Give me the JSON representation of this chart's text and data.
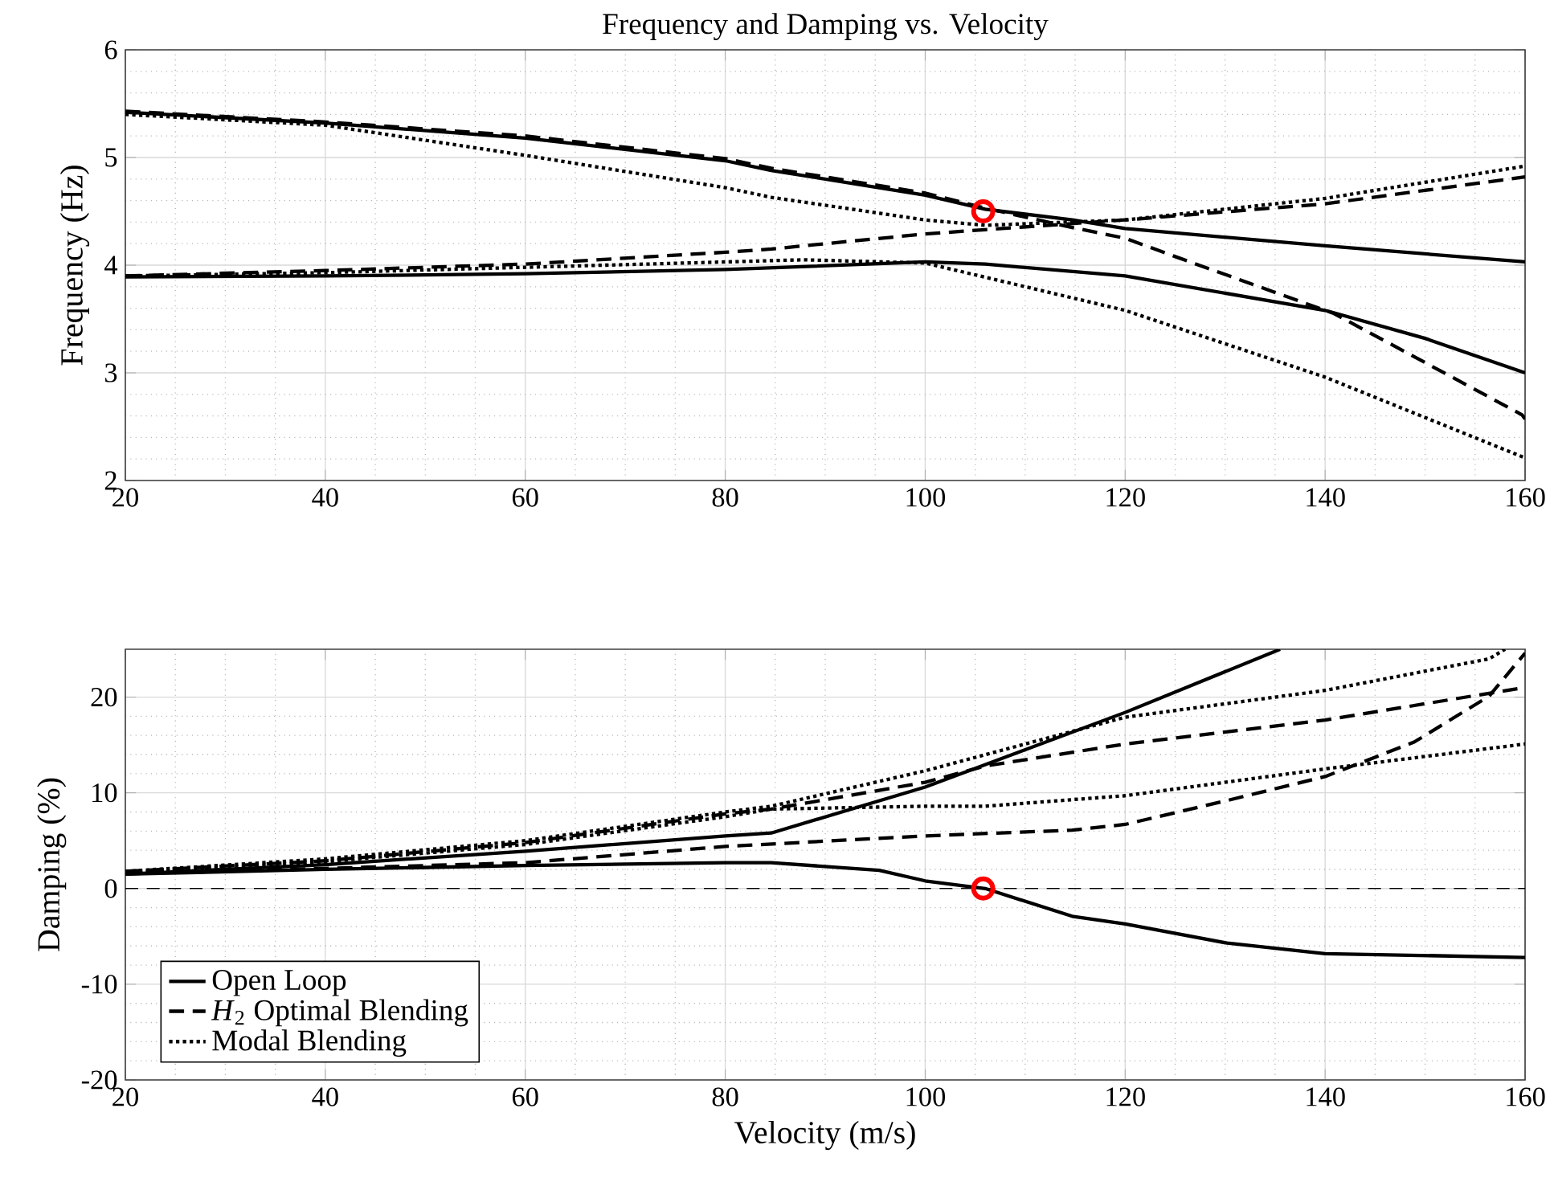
{
  "chart_data": [
    {
      "type": "line",
      "title": "Frequency and Damping vs. Velocity",
      "ylabel": "Frequency (Hz)",
      "xlim": [
        20,
        160
      ],
      "ylim": [
        2,
        6
      ],
      "xticks": [
        20,
        40,
        60,
        80,
        100,
        120,
        140,
        160
      ],
      "yticks": [
        2,
        3,
        4,
        5,
        6
      ],
      "grid": true,
      "series": [
        {
          "color": "#000000",
          "line_style": "solid",
          "x": [
            20,
            40,
            60,
            80,
            84.6,
            100,
            106,
            114.7,
            120,
            140,
            160
          ],
          "values": [
            5.42,
            5.32,
            5.18,
            4.97,
            4.88,
            4.65,
            4.52,
            4.42,
            4.34,
            4.18,
            4.03
          ]
        },
        {
          "color": "#000000",
          "line_style": "solid",
          "x": [
            20,
            40,
            60,
            80,
            100,
            106,
            120,
            140,
            150,
            160
          ],
          "values": [
            3.89,
            3.9,
            3.92,
            3.96,
            4.03,
            4.01,
            3.9,
            3.58,
            3.32,
            3.0
          ]
        },
        {
          "color": "#000000",
          "line_style": "dashed",
          "x": [
            20,
            40,
            60,
            80,
            84.6,
            100,
            106,
            114.7,
            120,
            125.3,
            140.9,
            159.7,
            160
          ],
          "values": [
            5.43,
            5.33,
            5.2,
            4.99,
            4.9,
            4.67,
            4.53,
            4.35,
            4.25,
            4.07,
            3.55,
            2.61,
            2.57
          ]
        },
        {
          "color": "#000000",
          "line_style": "dashed",
          "x": [
            20,
            40,
            60,
            80,
            84.6,
            100,
            106,
            120,
            140,
            160
          ],
          "values": [
            3.9,
            3.95,
            4.01,
            4.12,
            4.15,
            4.29,
            4.33,
            4.42,
            4.57,
            4.82
          ]
        },
        {
          "color": "#000000",
          "line_style": "dotted",
          "x": [
            20,
            40,
            60,
            80,
            84.6,
            100,
            106,
            120,
            140,
            160
          ],
          "values": [
            5.4,
            5.3,
            5.02,
            4.72,
            4.63,
            4.42,
            4.37,
            4.42,
            4.62,
            4.92
          ]
        },
        {
          "color": "#000000",
          "line_style": "dotted",
          "x": [
            20,
            40,
            60,
            80,
            87.8,
            100,
            120,
            140,
            160
          ],
          "values": [
            3.9,
            3.93,
            3.98,
            4.03,
            4.05,
            4.02,
            3.58,
            2.96,
            2.21
          ]
        },
        {
          "type": "scatter",
          "color": "#ff0000",
          "marker": "circle",
          "x": [
            105.8
          ],
          "values": [
            4.5
          ]
        }
      ]
    },
    {
      "type": "line",
      "xlabel": "Velocity (m/s)",
      "ylabel": "Damping (%)",
      "xlim": [
        20,
        160
      ],
      "ylim": [
        -20,
        25
      ],
      "xticks": [
        20,
        40,
        60,
        80,
        100,
        120,
        140,
        160
      ],
      "yticks": [
        -20,
        -10,
        0,
        10,
        20
      ],
      "grid": true,
      "legend": "bottom left",
      "ref_lines": [
        {
          "axis": "y",
          "value": 0,
          "color": "#000000",
          "line_style": "dashed"
        }
      ],
      "series": [
        {
          "name": "Open Loop",
          "color": "#000000",
          "line_style": "solid",
          "x": [
            20,
            40,
            60,
            80,
            84.6,
            100,
            120,
            135.5
          ],
          "values": [
            1.5,
            2.5,
            3.9,
            5.5,
            5.8,
            10.6,
            18.4,
            25
          ]
        },
        {
          "color": "#000000",
          "line_style": "solid",
          "x": [
            20,
            40,
            60,
            80,
            84.6,
            95.4,
            100,
            106,
            114.7,
            120,
            130.2,
            140,
            160
          ],
          "values": [
            1.5,
            2.0,
            2.4,
            2.7,
            2.7,
            1.9,
            0.8,
            0,
            -2.9,
            -3.7,
            -5.7,
            -6.8,
            -7.2
          ]
        },
        {
          "name": "*H*$_{2}$ Optimal Blending",
          "color": "#000000",
          "line_style": "dashed",
          "x": [
            20,
            40,
            60,
            80,
            100,
            114.7,
            120,
            130.2,
            140,
            148.9,
            156.4,
            160
          ],
          "values": [
            1.6,
            2.1,
            2.7,
            4.4,
            5.5,
            6.1,
            6.7,
            9.2,
            11.7,
            15.3,
            20.1,
            24.6
          ]
        },
        {
          "color": "#000000",
          "line_style": "dashed",
          "x": [
            20,
            40,
            60,
            80,
            84.6,
            100,
            106,
            120,
            140,
            156.4,
            160
          ],
          "values": [
            1.8,
            2.9,
            4.8,
            7.8,
            8.3,
            11.1,
            12.8,
            15.1,
            17.6,
            20.4,
            21.0
          ]
        },
        {
          "name": "Modal Blending",
          "color": "#000000",
          "line_style": "dotted",
          "x": [
            20,
            40,
            60,
            80,
            84.6,
            100,
            120,
            140,
            156.4,
            158
          ],
          "values": [
            1.8,
            3.1,
            5.0,
            8.0,
            8.6,
            12.3,
            17.9,
            20.7,
            24.0,
            25.0
          ]
        },
        {
          "color": "#000000",
          "line_style": "dotted",
          "x": [
            20,
            40,
            60,
            80,
            84.6,
            100,
            106,
            120,
            140,
            160
          ],
          "values": [
            1.6,
            2.8,
            4.6,
            7.5,
            8.3,
            8.6,
            8.6,
            9.7,
            12.5,
            15.1
          ]
        },
        {
          "type": "scatter",
          "color": "#ff0000",
          "marker": "circle",
          "x": [
            105.8
          ],
          "values": [
            0
          ]
        }
      ]
    }
  ]
}
